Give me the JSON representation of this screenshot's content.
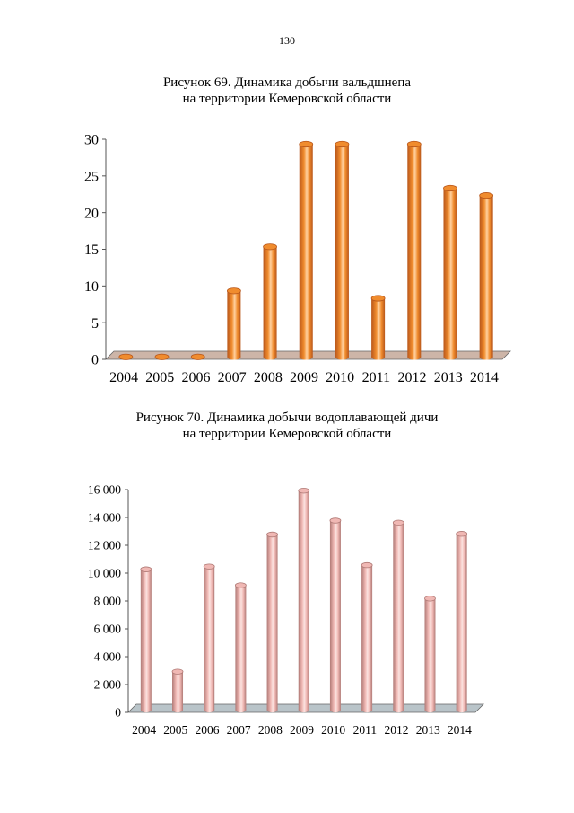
{
  "page_number": "130",
  "chart_data": [
    {
      "type": "bar",
      "caption_line1": "Рисунок 69. Динамика добычи вальдшнепа",
      "caption_line2": "на территории Кемеровской области",
      "categories": [
        "2004",
        "2005",
        "2006",
        "2007",
        "2008",
        "2009",
        "2010",
        "2011",
        "2012",
        "2013",
        "2014"
      ],
      "values": [
        0,
        0,
        0,
        9,
        15,
        29,
        29,
        8,
        29,
        23,
        22
      ],
      "ylim": [
        0,
        30
      ],
      "yticks": [
        0,
        5,
        10,
        15,
        20,
        25,
        30
      ],
      "ytick_labels": [
        "0",
        "5",
        "10",
        "15",
        "20",
        "25",
        "30"
      ],
      "bar_color": "#f08c2e",
      "bar_dark": "#b8561a",
      "bar_light": "#ffd1a0",
      "floor_color": "#cdb5a8",
      "xlabel": "",
      "ylabel": "",
      "grid": false
    },
    {
      "type": "bar",
      "caption_line1": "Рисунок 70. Динамика добычи водоплавающей дичи",
      "caption_line2": "на территории Кемеровской области",
      "categories": [
        "2004",
        "2005",
        "2006",
        "2007",
        "2008",
        "2009",
        "2010",
        "2011",
        "2012",
        "2013",
        "2014"
      ],
      "values": [
        10100,
        2750,
        10300,
        8950,
        12600,
        15750,
        13600,
        10400,
        13450,
        8000,
        12650
      ],
      "ylim": [
        0,
        16000
      ],
      "yticks": [
        0,
        2000,
        4000,
        6000,
        8000,
        10000,
        12000,
        14000,
        16000
      ],
      "ytick_labels": [
        "0",
        "2 000",
        "4 000",
        "6 000",
        "8 000",
        "10 000",
        "12 000",
        "14 000",
        "16 000"
      ],
      "bar_color": "#f0b8b4",
      "bar_dark": "#b07a76",
      "bar_light": "#fbe3e0",
      "floor_color": "#b9c4c9",
      "xlabel": "",
      "ylabel": "",
      "grid": false
    }
  ]
}
